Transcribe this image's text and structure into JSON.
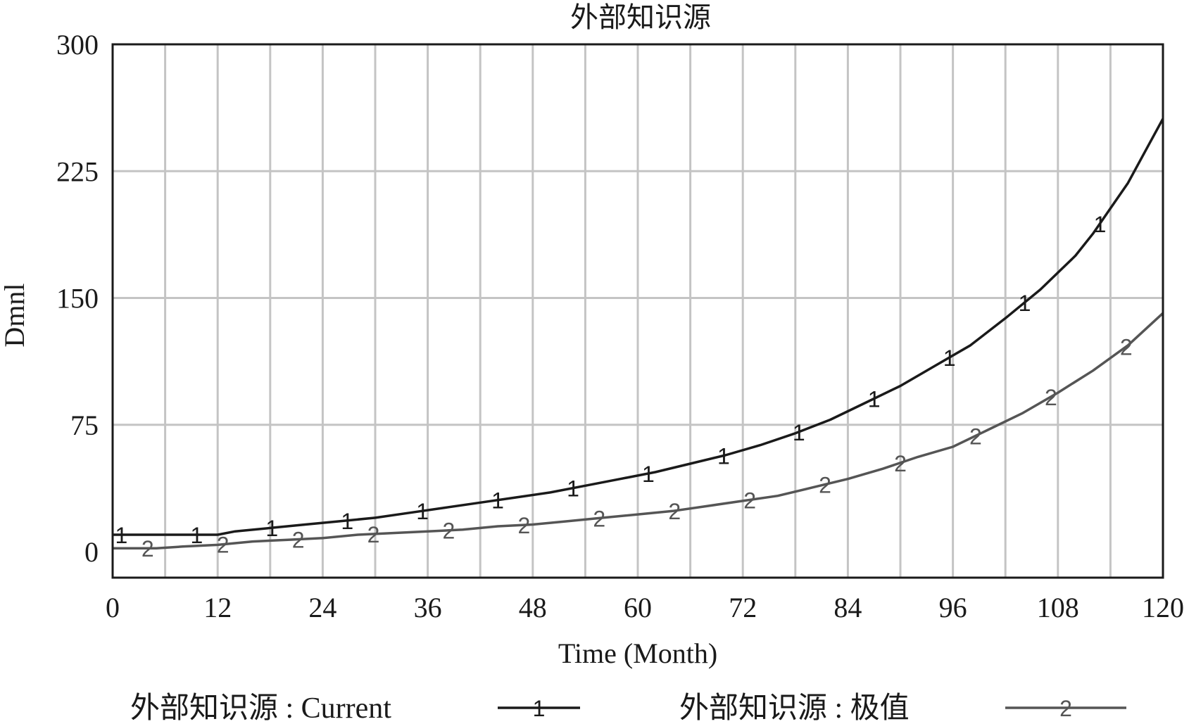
{
  "chart_data": {
    "type": "line",
    "title": "外部知识源",
    "xlabel": "Time (Month)",
    "ylabel": "Dmnl",
    "xlim": [
      0,
      120
    ],
    "ylim": [
      0,
      300
    ],
    "x_ticks": [
      "0",
      "12",
      "24",
      "36",
      "48",
      "60",
      "72",
      "84",
      "96",
      "108",
      "120"
    ],
    "y_ticks": [
      "0",
      "75",
      "150",
      "225",
      "300"
    ],
    "grid": true,
    "legend_position": "bottom",
    "series": [
      {
        "name": "外部知识源 : Current",
        "marker": "1",
        "color": "#1a1a1a",
        "x": [
          0,
          1,
          8,
          12,
          14,
          18,
          22,
          26,
          30,
          34,
          38,
          42,
          46,
          50,
          54,
          58,
          62,
          66,
          70,
          74,
          78,
          82,
          86,
          90,
          94,
          98,
          102,
          106,
          110,
          112,
          114,
          116,
          118,
          120
        ],
        "y": [
          10,
          10,
          10,
          10,
          12,
          14,
          16,
          18,
          20,
          23,
          26,
          29,
          32,
          35,
          39,
          43,
          47,
          52,
          57,
          63,
          70,
          78,
          88,
          98,
          110,
          122,
          138,
          155,
          175,
          188,
          203,
          218,
          237,
          256
        ]
      },
      {
        "name": "外部知识源 : 极值",
        "marker": "2",
        "color": "#555555",
        "x": [
          0,
          2,
          5,
          8,
          12,
          16,
          20,
          24,
          28,
          32,
          36,
          40,
          44,
          48,
          52,
          56,
          60,
          64,
          68,
          72,
          76,
          80,
          84,
          88,
          92,
          96,
          100,
          104,
          108,
          112,
          116,
          120
        ],
        "y": [
          2,
          2,
          2,
          3,
          4,
          6,
          7,
          8,
          10,
          11,
          12,
          13,
          15,
          16,
          18,
          20,
          22,
          24,
          27,
          30,
          33,
          38,
          43,
          49,
          56,
          62,
          72,
          82,
          94,
          107,
          122,
          141
        ]
      }
    ]
  }
}
